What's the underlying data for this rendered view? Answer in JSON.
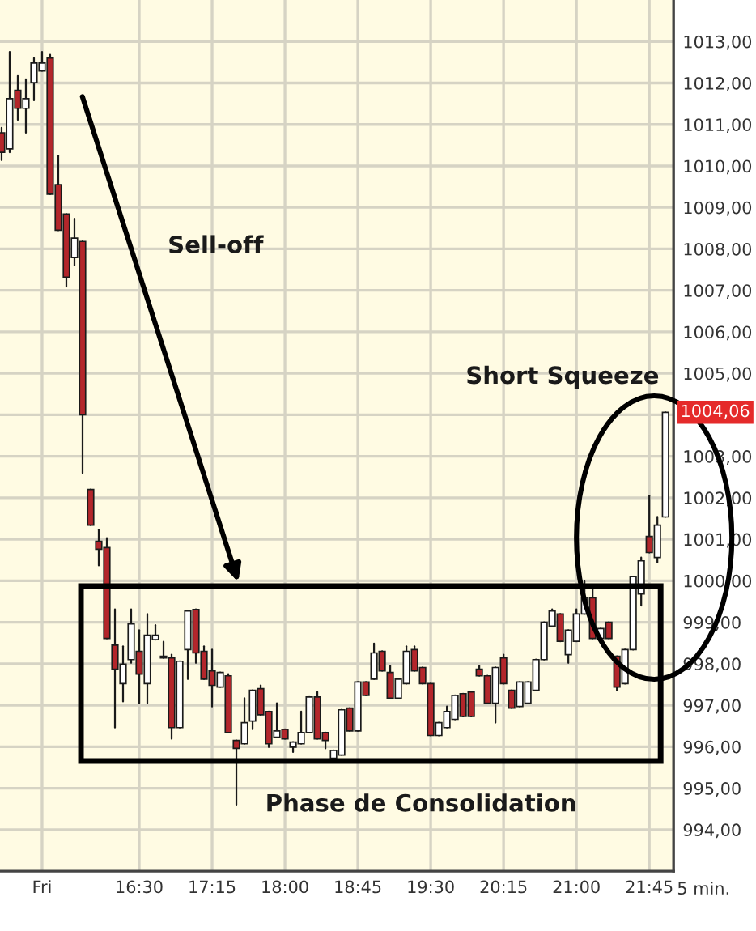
{
  "chart_data": {
    "type": "candlestick",
    "xlabel": "5 min.",
    "annotations": [
      "Sell-off",
      "Short Squeeze",
      "Phase de Consolidation",
      "1004,06"
    ],
    "x": [
      15.0833,
      15.1667,
      15.25,
      15.3333,
      15.4167,
      15.5,
      15.5833,
      15.6667,
      15.75,
      15.8333,
      15.9167,
      16.0,
      16.0833,
      16.1667,
      16.25,
      16.3333,
      16.4167,
      16.5,
      16.5833,
      16.6667,
      16.75,
      16.8333,
      16.9167,
      17.0,
      17.0833,
      17.1667,
      17.25,
      17.3333,
      17.4167,
      17.5,
      17.5833,
      17.6667,
      17.75,
      17.8333,
      17.9167,
      18.0,
      18.0833,
      18.1667,
      18.25,
      18.3333,
      18.4167,
      18.5,
      18.5833,
      18.6667,
      18.75,
      18.8333,
      18.9167,
      19.0,
      19.0833,
      19.1667,
      19.25,
      19.3333,
      19.4167,
      19.5,
      19.5833,
      19.6667,
      19.75,
      19.8333,
      19.9167,
      20.0,
      20.0833,
      20.1667,
      20.25,
      20.3333,
      20.4167,
      20.5,
      20.5833,
      20.6667,
      20.75,
      20.8333,
      20.9167,
      21.0,
      21.0833,
      21.1667,
      21.25,
      21.3333,
      21.4167,
      21.5,
      21.5833,
      21.6667,
      21.75,
      21.8333,
      21.9167
    ],
    "ohlc": [
      [
        1010.8,
        1010.92,
        1010.14,
        1010.33
      ],
      [
        1010.41,
        1012.75,
        1010.33,
        1011.62
      ],
      [
        1011.82,
        1012.17,
        1011.11,
        1011.39
      ],
      [
        1011.39,
        1012.09,
        1010.8,
        1011.62
      ],
      [
        1012.01,
        1012.6,
        1011.58,
        1012.48
      ],
      [
        1012.29,
        1012.75,
        1012.29,
        1012.48
      ],
      [
        1012.6,
        1012.68,
        1009.32,
        1009.32
      ],
      [
        1009.55,
        1010.25,
        1008.45,
        1008.45
      ],
      [
        1008.84,
        1008.84,
        1007.09,
        1007.32
      ],
      [
        1007.79,
        1008.73,
        1007.6,
        1008.26
      ],
      [
        1008.18,
        1008.18,
        1002.6,
        1004.0
      ],
      [
        1002.2,
        1002.2,
        1001.34,
        1001.34
      ],
      [
        1000.95,
        1001.23,
        1000.37,
        1000.76
      ],
      [
        1000.8,
        1001.03,
        998.61,
        998.61
      ],
      [
        998.45,
        999.31,
        996.46,
        997.87
      ],
      [
        997.52,
        998.42,
        997.09,
        997.99
      ],
      [
        998.1,
        999.31,
        998.02,
        998.96
      ],
      [
        998.3,
        998.81,
        997.05,
        997.75
      ],
      [
        997.52,
        999.2,
        997.05,
        998.69
      ],
      [
        998.58,
        998.93,
        998.58,
        998.69
      ],
      [
        998.18,
        998.53,
        998.14,
        998.14
      ],
      [
        998.14,
        998.22,
        996.19,
        996.46
      ],
      [
        996.46,
        998.06,
        996.46,
        998.06
      ],
      [
        998.34,
        999.27,
        997.63,
        999.27
      ],
      [
        999.31,
        999.31,
        998.02,
        998.26
      ],
      [
        998.3,
        998.42,
        997.63,
        997.63
      ],
      [
        997.83,
        998.34,
        996.97,
        997.48
      ],
      [
        997.44,
        997.79,
        997.44,
        997.79
      ],
      [
        997.71,
        997.75,
        996.34,
        996.34
      ],
      [
        996.15,
        996.15,
        994.6,
        995.96
      ],
      [
        996.07,
        997.17,
        996.07,
        996.58
      ],
      [
        996.62,
        997.36,
        996.42,
        997.36
      ],
      [
        997.4,
        997.48,
        996.77,
        996.77
      ],
      [
        996.85,
        996.85,
        995.99,
        996.07
      ],
      [
        996.23,
        997.05,
        996.23,
        996.38
      ],
      [
        996.42,
        996.42,
        996.19,
        996.19
      ],
      [
        995.99,
        996.11,
        995.87,
        996.11
      ],
      [
        996.07,
        996.85,
        996.07,
        996.34
      ],
      [
        996.34,
        997.2,
        996.34,
        997.2
      ],
      [
        997.2,
        997.32,
        996.19,
        996.19
      ],
      [
        996.34,
        996.34,
        995.96,
        996.15
      ],
      [
        995.72,
        995.91,
        995.72,
        995.91
      ],
      [
        995.8,
        996.89,
        995.8,
        996.89
      ],
      [
        996.93,
        996.93,
        996.38,
        996.38
      ],
      [
        996.38,
        997.56,
        996.38,
        997.56
      ],
      [
        997.56,
        997.56,
        997.24,
        997.24
      ],
      [
        997.63,
        998.49,
        997.63,
        998.26
      ],
      [
        998.3,
        998.3,
        997.83,
        997.83
      ],
      [
        997.79,
        997.95,
        997.17,
        997.17
      ],
      [
        997.17,
        997.63,
        997.17,
        997.63
      ],
      [
        997.52,
        998.42,
        997.52,
        998.3
      ],
      [
        998.34,
        998.42,
        997.83,
        997.83
      ],
      [
        997.91,
        997.91,
        997.52,
        997.52
      ],
      [
        997.52,
        997.52,
        996.27,
        996.27
      ],
      [
        996.27,
        996.58,
        996.27,
        996.58
      ],
      [
        996.46,
        996.97,
        996.46,
        996.85
      ],
      [
        996.66,
        997.24,
        996.66,
        997.24
      ],
      [
        997.28,
        997.28,
        996.73,
        996.73
      ],
      [
        997.32,
        997.32,
        996.73,
        996.73
      ],
      [
        997.87,
        997.95,
        997.71,
        997.71
      ],
      [
        997.71,
        997.71,
        997.05,
        997.05
      ],
      [
        997.05,
        997.91,
        996.58,
        997.91
      ],
      [
        998.14,
        998.22,
        997.52,
        997.52
      ],
      [
        997.36,
        997.36,
        996.93,
        996.93
      ],
      [
        996.97,
        997.56,
        996.97,
        997.56
      ],
      [
        997.05,
        997.56,
        997.05,
        997.56
      ],
      [
        997.36,
        998.1,
        997.36,
        998.1
      ],
      [
        998.1,
        999.0,
        998.1,
        999.0
      ],
      [
        998.91,
        999.31,
        998.91,
        999.27
      ],
      [
        999.2,
        999.2,
        998.54,
        998.54
      ],
      [
        998.22,
        998.81,
        998.02,
        998.81
      ],
      [
        998.54,
        999.31,
        998.54,
        999.2
      ],
      [
        999.2,
        999.99,
        999.2,
        999.6
      ],
      [
        999.59,
        999.79,
        998.61,
        998.61
      ],
      [
        998.61,
        998.85,
        998.61,
        998.85
      ],
      [
        999.0,
        999.0,
        998.61,
        998.61
      ],
      [
        998.18,
        998.18,
        997.36,
        997.44
      ],
      [
        997.52,
        998.34,
        997.52,
        998.34
      ],
      [
        998.34,
        1000.1,
        998.34,
        1000.1
      ],
      [
        999.68,
        1000.56,
        999.4,
        1000.48
      ],
      [
        1001.07,
        1002.05,
        1000.68,
        1000.68
      ],
      [
        1000.56,
        1001.54,
        1000.44,
        1001.34
      ],
      [
        1001.54,
        1004.06,
        1001.54,
        1004.06
      ]
    ],
    "xlim": [
      15.067,
      22.0
    ],
    "ylim": [
      993.0,
      1014.0
    ],
    "xticks": [
      {
        "value": 15.5,
        "label": "Fri"
      },
      {
        "value": 16.5,
        "label": "16:30"
      },
      {
        "value": 17.25,
        "label": "17:15"
      },
      {
        "value": 18.0,
        "label": "18:00"
      },
      {
        "value": 18.75,
        "label": "18:45"
      },
      {
        "value": 19.5,
        "label": "19:30"
      },
      {
        "value": 20.25,
        "label": "20:15"
      },
      {
        "value": 21.0,
        "label": "21:00"
      },
      {
        "value": 21.75,
        "label": "21:45"
      }
    ],
    "yticks": [
      {
        "value": 994,
        "label": "994,00"
      },
      {
        "value": 995,
        "label": "995,00"
      },
      {
        "value": 996,
        "label": "996,00"
      },
      {
        "value": 997,
        "label": "997,00"
      },
      {
        "value": 998,
        "label": "998,00"
      },
      {
        "value": 999,
        "label": "999,00"
      },
      {
        "value": 1000,
        "label": "1000,00"
      },
      {
        "value": 1001,
        "label": "1001,00"
      },
      {
        "value": 1002,
        "label": "1002,00"
      },
      {
        "value": 1003,
        "label": "1003,00"
      },
      {
        "value": 1004,
        "label": null
      },
      {
        "value": 1005,
        "label": "1005,00"
      },
      {
        "value": 1006,
        "label": "1006,00"
      },
      {
        "value": 1007,
        "label": "1007,00"
      },
      {
        "value": 1008,
        "label": "1008,00"
      },
      {
        "value": 1009,
        "label": "1009,00"
      },
      {
        "value": 1010,
        "label": "1010,00"
      },
      {
        "value": 1011,
        "label": "1011,00"
      },
      {
        "value": 1012,
        "label": "1012,00"
      },
      {
        "value": 1013,
        "label": "1013,00"
      }
    ],
    "grid": true
  }
}
